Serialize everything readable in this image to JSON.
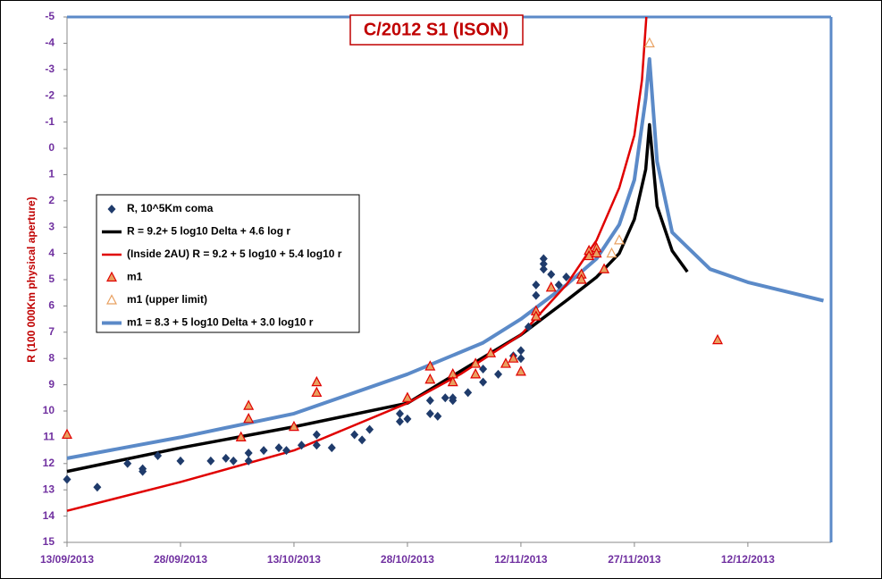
{
  "chart_data": {
    "type": "scatter",
    "title": "C/2012 S1 (ISON)",
    "y_label": "R (100 000Km physical aperture)",
    "xlim": [
      "2013-09-13",
      "2013-12-23"
    ],
    "xticks": [
      {
        "value": "2013-09-13",
        "label": "13/09/2013"
      },
      {
        "value": "2013-09-28",
        "label": "28/09/2013"
      },
      {
        "value": "2013-10-13",
        "label": "13/10/2013"
      },
      {
        "value": "2013-10-28",
        "label": "28/10/2013"
      },
      {
        "value": "2013-11-12",
        "label": "12/11/2013"
      },
      {
        "value": "2013-11-27",
        "label": "27/11/2013"
      },
      {
        "value": "2013-12-12",
        "label": "12/12/2013"
      }
    ],
    "ylim": [
      -5,
      15
    ],
    "y_inverted": true,
    "yticks": [
      -5,
      -4,
      -3,
      -2,
      -1,
      0,
      1,
      2,
      3,
      4,
      5,
      6,
      7,
      8,
      9,
      10,
      11,
      12,
      13,
      14,
      15
    ],
    "series": [
      {
        "name": "R, 10^5Km coma",
        "kind": "diamond",
        "color": "#1f3b6b",
        "x": [
          "2013-09-13",
          "2013-09-17",
          "2013-09-21",
          "2013-09-23",
          "2013-09-23",
          "2013-09-25",
          "2013-09-28",
          "2013-10-02",
          "2013-10-04",
          "2013-10-05",
          "2013-10-07",
          "2013-10-07",
          "2013-10-09",
          "2013-10-11",
          "2013-10-12",
          "2013-10-14",
          "2013-10-16",
          "2013-10-16",
          "2013-10-18",
          "2013-10-21",
          "2013-10-22",
          "2013-10-23",
          "2013-10-27",
          "2013-10-27",
          "2013-10-28",
          "2013-10-31",
          "2013-10-31",
          "2013-11-01",
          "2013-11-02",
          "2013-11-03",
          "2013-11-03",
          "2013-11-05",
          "2013-11-07",
          "2013-11-07",
          "2013-11-09",
          "2013-11-11",
          "2013-11-12",
          "2013-11-12",
          "2013-11-13",
          "2013-11-14",
          "2013-11-14",
          "2013-11-15",
          "2013-11-15",
          "2013-11-15",
          "2013-11-16",
          "2013-11-17",
          "2013-11-18"
        ],
        "values": [
          12.6,
          12.9,
          12.0,
          12.3,
          12.2,
          11.7,
          11.9,
          11.9,
          11.8,
          11.9,
          11.9,
          11.6,
          11.5,
          11.4,
          11.5,
          11.3,
          10.9,
          11.3,
          11.4,
          10.9,
          11.1,
          10.7,
          10.1,
          10.4,
          10.3,
          9.6,
          10.1,
          10.2,
          9.5,
          9.5,
          9.6,
          9.3,
          8.9,
          8.4,
          8.6,
          7.9,
          7.7,
          8.0,
          6.8,
          5.2,
          5.6,
          4.2,
          4.4,
          4.6,
          4.8,
          5.2,
          4.9
        ]
      },
      {
        "name": "R = 9.2+ 5 log10 Delta + 4.6  log r",
        "kind": "line",
        "color": "#000000",
        "width": 3.5,
        "x": [
          "2013-09-13",
          "2013-09-28",
          "2013-10-13",
          "2013-10-28",
          "2013-11-12",
          "2013-11-18",
          "2013-11-22",
          "2013-11-25",
          "2013-11-27",
          "2013-11-28T12:00",
          "2013-11-29",
          "2013-11-30",
          "2013-12-02",
          "2013-12-04"
        ],
        "values": [
          12.3,
          11.4,
          10.6,
          9.7,
          7.1,
          5.8,
          4.9,
          4.0,
          2.7,
          0.8,
          -0.9,
          2.2,
          3.9,
          4.7
        ]
      },
      {
        "name": "(Inside 2AU) R = 9.2 + 5 log10 + 5.4 log10 r",
        "kind": "line",
        "color": "#e00000",
        "width": 2.5,
        "x": [
          "2013-09-13",
          "2013-09-28",
          "2013-10-13",
          "2013-10-28",
          "2013-11-04",
          "2013-11-12",
          "2013-11-18",
          "2013-11-22",
          "2013-11-25",
          "2013-11-27",
          "2013-11-28",
          "2013-11-28T14:00"
        ],
        "values": [
          13.8,
          12.7,
          11.5,
          9.7,
          8.6,
          7.1,
          5.2,
          3.5,
          1.5,
          -0.5,
          -2.6,
          -5
        ]
      },
      {
        "name": "m1",
        "kind": "triangle",
        "color": "#e00000",
        "fill": "#e8a060",
        "x": [
          "2013-09-13",
          "2013-10-07",
          "2013-10-07",
          "2013-10-06",
          "2013-10-13",
          "2013-10-16",
          "2013-10-16",
          "2013-10-28",
          "2013-10-31",
          "2013-10-31",
          "2013-11-03",
          "2013-11-03",
          "2013-11-06",
          "2013-11-06",
          "2013-11-08",
          "2013-11-10",
          "2013-11-11",
          "2013-11-12",
          "2013-11-14",
          "2013-11-14",
          "2013-11-16",
          "2013-11-20",
          "2013-11-20",
          "2013-11-21",
          "2013-11-21",
          "2013-11-22",
          "2013-11-22",
          "2013-11-23",
          "2013-12-08"
        ],
        "values": [
          10.9,
          9.8,
          10.3,
          11.0,
          10.6,
          8.9,
          9.3,
          9.5,
          8.3,
          8.8,
          8.6,
          8.9,
          8.2,
          8.6,
          7.8,
          8.2,
          8.0,
          8.5,
          6.2,
          6.4,
          5.3,
          4.8,
          5.0,
          3.9,
          4.1,
          3.8,
          4.0,
          4.6,
          7.3
        ]
      },
      {
        "name": "m1 (upper limit)",
        "kind": "triangle",
        "color": "#e8a060",
        "fill": "#ffffff",
        "x": [
          "2013-11-24",
          "2013-11-25",
          "2013-11-29"
        ],
        "values": [
          4.0,
          3.5,
          -4.0
        ]
      },
      {
        "name": "m1 = 8.3 + 5 log10 Delta + 3.0 log10 r",
        "kind": "line",
        "color": "#5b8ac8",
        "width": 4,
        "x": [
          "2013-09-13",
          "2013-09-28",
          "2013-10-13",
          "2013-10-28",
          "2013-11-07",
          "2013-11-12",
          "2013-11-18",
          "2013-11-22",
          "2013-11-25",
          "2013-11-27",
          "2013-11-28T12:00",
          "2013-11-29",
          "2013-11-30",
          "2013-12-02",
          "2013-12-07",
          "2013-12-12",
          "2013-12-22"
        ],
        "values": [
          11.8,
          11.0,
          10.1,
          8.6,
          7.4,
          6.5,
          5.2,
          4.2,
          2.9,
          1.2,
          -1.9,
          -3.4,
          0.5,
          3.2,
          4.6,
          5.1,
          5.8
        ]
      }
    ]
  }
}
